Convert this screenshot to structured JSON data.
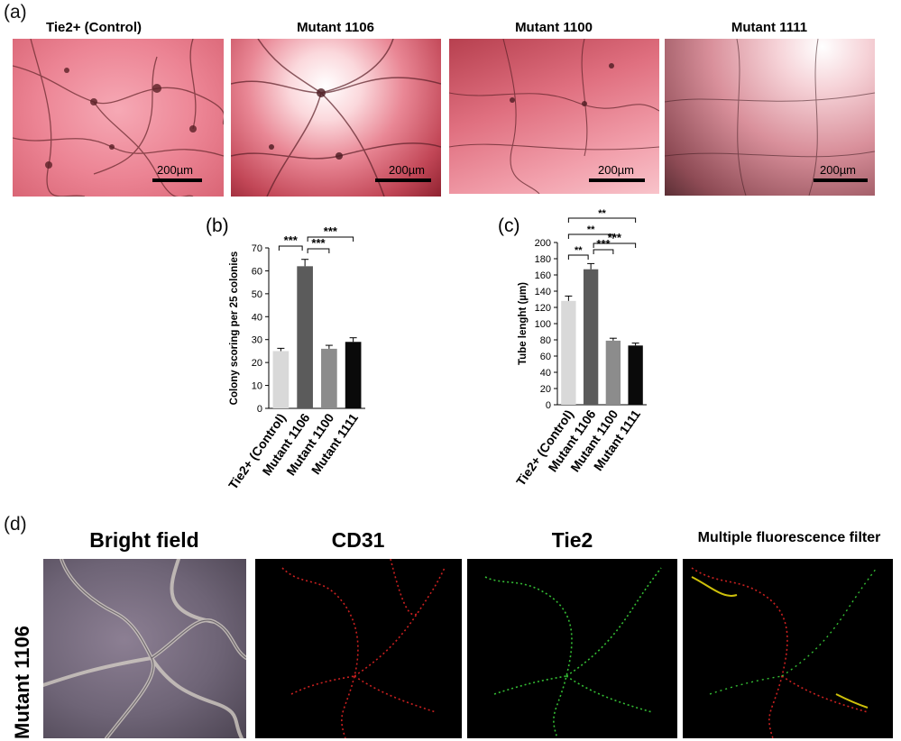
{
  "panel_a": {
    "letter": "(a)",
    "images": [
      {
        "title": "Tie2+ (Control)",
        "scale": "200µm"
      },
      {
        "title": "Mutant 1106",
        "scale": "200µm"
      },
      {
        "title": "Mutant 1100",
        "scale": "200µm"
      },
      {
        "title": "Mutant 1111",
        "scale": "200µm"
      }
    ]
  },
  "chart_data": [
    {
      "type": "bar",
      "panel": "(b)",
      "categories": [
        "Tie2+ (Control)",
        "Mutant 1106",
        "Mutant 1100",
        "Mutant 1111"
      ],
      "values": [
        25,
        62,
        26,
        29
      ],
      "errors": [
        1.2,
        3.0,
        1.5,
        1.8
      ],
      "ylabel": "Colony scoring per 25 colonies",
      "ylim": [
        0,
        70
      ],
      "yticks": [
        0,
        10,
        20,
        30,
        40,
        50,
        60,
        70
      ],
      "bar_colors": [
        "#d9d9d9",
        "#5b5b5b",
        "#8c8c8c",
        "#0a0a0a"
      ],
      "significance": [
        {
          "from": 0,
          "to": 1,
          "label": "***"
        },
        {
          "from": 1,
          "to": 2,
          "label": "***"
        },
        {
          "from": 1,
          "to": 3,
          "label": "***"
        }
      ]
    },
    {
      "type": "bar",
      "panel": "(c)",
      "categories": [
        "Tie2+ (Control)",
        "Mutant 1106",
        "Mutant 1100",
        "Mutant 1111"
      ],
      "values": [
        128,
        167,
        79,
        73
      ],
      "errors": [
        6,
        7,
        3,
        3
      ],
      "ylabel": "Tube lenght (µm)",
      "ylim": [
        0,
        200
      ],
      "yticks": [
        0,
        20,
        40,
        60,
        80,
        100,
        120,
        140,
        160,
        180,
        200
      ],
      "bar_colors": [
        "#d9d9d9",
        "#5b5b5b",
        "#8c8c8c",
        "#0a0a0a"
      ],
      "significance": [
        {
          "from": 0,
          "to": 1,
          "label": "**"
        },
        {
          "from": 1,
          "to": 2,
          "label": "***"
        },
        {
          "from": 1,
          "to": 3,
          "label": "***"
        },
        {
          "from": 0,
          "to": 2,
          "label": "**"
        },
        {
          "from": 0,
          "to": 3,
          "label": "**"
        }
      ]
    }
  ],
  "panel_d": {
    "letter": "(d)",
    "row_label": "Mutant 1106",
    "titles": [
      {
        "text": "Bright field",
        "color": "#111111"
      },
      {
        "text": "CD31",
        "color": "#e32020"
      },
      {
        "text": "Tie2",
        "color": "#3fd23f"
      },
      {
        "text": "Multiple fluorescence filter",
        "color": "#f2e20c"
      }
    ]
  }
}
